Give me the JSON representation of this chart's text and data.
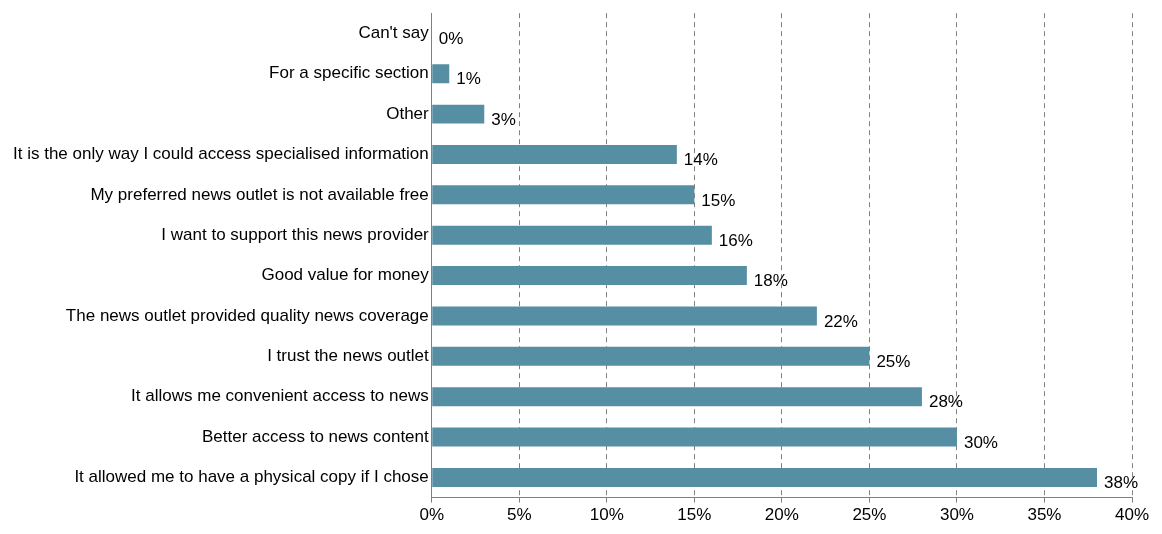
{
  "chart_data": {
    "type": "bar",
    "orientation": "horizontal",
    "categories": [
      "Can't say",
      "For a specific section",
      "Other",
      "It is the only way I could access specialised information",
      "My preferred news outlet is not available free",
      "I want to support this news provider",
      "Good value for money",
      "The news outlet provided quality news coverage",
      "I trust the news outlet",
      "It allows me convenient access to news",
      "Better access to news content",
      "It allowed me to have a physical copy if I chose"
    ],
    "values": [
      0,
      1,
      3,
      14,
      15,
      16,
      18,
      22,
      25,
      28,
      30,
      38
    ],
    "value_labels": [
      "0%",
      "1%",
      "3%",
      "14%",
      "15%",
      "16%",
      "18%",
      "22%",
      "25%",
      "28%",
      "30%",
      "38%"
    ],
    "color": "#568ea3",
    "xlim": [
      0,
      40
    ],
    "xticks": [
      {
        "value": 0,
        "label": "0%"
      },
      {
        "value": 5,
        "label": "5%"
      },
      {
        "value": 10,
        "label": "10%"
      },
      {
        "value": 15,
        "label": "15%"
      },
      {
        "value": 20,
        "label": "20%"
      },
      {
        "value": 25,
        "label": "25%"
      },
      {
        "value": 30,
        "label": "30%"
      },
      {
        "value": 35,
        "label": "35%"
      },
      {
        "value": 40,
        "label": "40%"
      }
    ],
    "grid": "x"
  }
}
